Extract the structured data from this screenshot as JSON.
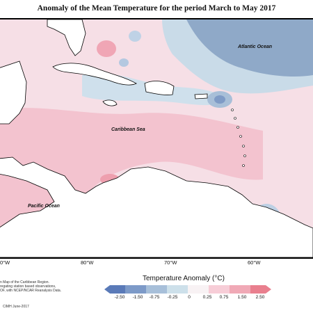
{
  "title": "Anomaly of the Mean Temperature for the period March to May 2017",
  "labels": {
    "atlantic": "Atlantic Ocean",
    "caribbean": "Caribbean Sea",
    "pacific": "Pacific Ocean"
  },
  "longitudes": [
    "0°W",
    "80°W",
    "70°W",
    "60°W"
  ],
  "credit": {
    "line1": "n Map of the Caribbean Region.",
    "line2": "regating station based observations,",
    "line3": "OF, with NCEP/NCAR Reanalysis Data.",
    "line4": "CIMH June-2017"
  },
  "legend": {
    "title": "Temperature Anomaly (°C)",
    "ticks": [
      "-2.50",
      "-1.50",
      "-0.75",
      "-0.25",
      "0",
      "0.25",
      "0.75",
      "1.50",
      "2.50"
    ],
    "colors": [
      "#5a7ab8",
      "#7d9ac8",
      "#a7bfd9",
      "#cde0ea",
      "#f8f2f4",
      "#f7cdd7",
      "#f0a9b6",
      "#e97f8e"
    ]
  }
}
